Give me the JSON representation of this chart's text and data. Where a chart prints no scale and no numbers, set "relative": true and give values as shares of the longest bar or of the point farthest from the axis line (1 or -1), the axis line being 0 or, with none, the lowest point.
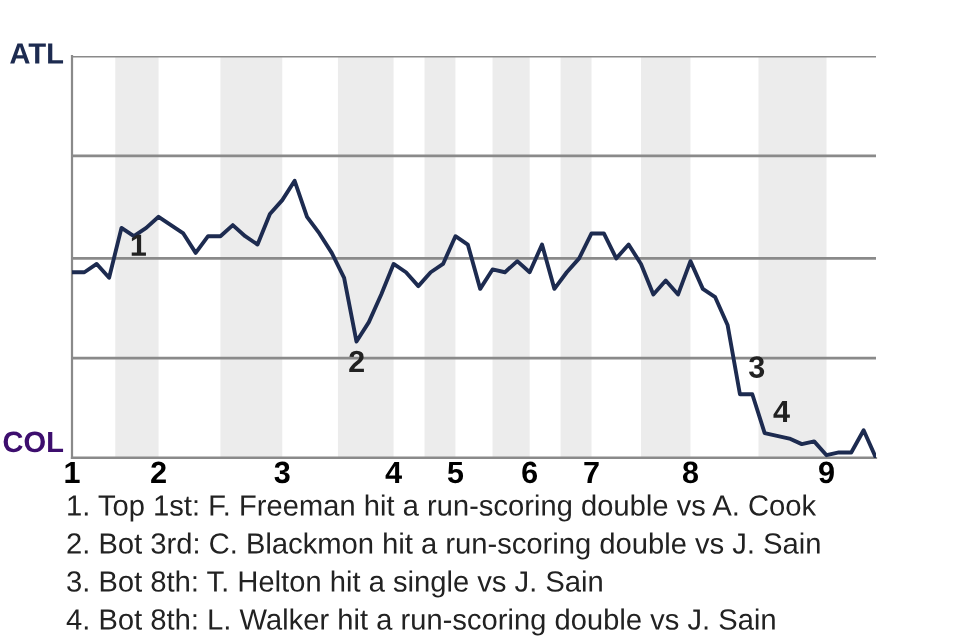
{
  "chart_data": {
    "type": "line",
    "relative": true,
    "categories": [
      "1",
      null,
      null,
      null,
      null,
      null,
      null,
      "2",
      null,
      null,
      null,
      null,
      null,
      null,
      null,
      null,
      null,
      "3",
      null,
      null,
      null,
      null,
      null,
      null,
      null,
      null,
      "4",
      null,
      null,
      null,
      null,
      "5",
      null,
      null,
      null,
      null,
      null,
      "6",
      null,
      null,
      null,
      null,
      "7",
      null,
      null,
      null,
      null,
      null,
      null,
      null,
      "8",
      null,
      null,
      null,
      null,
      null,
      null,
      null,
      null,
      null,
      null,
      "9",
      null,
      null,
      null,
      null
    ],
    "series": [
      {
        "color": "#1d2b50",
        "values": [
          0.67,
          0.67,
          0.7,
          0.65,
          0.83,
          0.8,
          0.83,
          0.87,
          0.84,
          0.81,
          0.74,
          0.8,
          0.8,
          0.84,
          0.8,
          0.77,
          0.88,
          0.93,
          1,
          0.87,
          0.81,
          0.74,
          0.65,
          0.42,
          0.49,
          0.59,
          0.7,
          0.67,
          0.62,
          0.67,
          0.7,
          0.8,
          0.77,
          0.61,
          0.68,
          0.67,
          0.71,
          0.67,
          0.77,
          0.61,
          0.67,
          0.72,
          0.81,
          0.81,
          0.72,
          0.77,
          0.7,
          0.59,
          0.64,
          0.59,
          0.71,
          0.61,
          0.58,
          0.48,
          0.23,
          0.23,
          0.09,
          0.08,
          0.07,
          0.05,
          0.06,
          0.01,
          0.02,
          0.02,
          0.1,
          0
        ]
      }
    ],
    "marker": "none",
    "line_style": "solid",
    "ref_lines": [
      {
        "axis": "y",
        "value": 0,
        "label": "COL"
      },
      {
        "axis": "y",
        "value": 0.36,
        "label": null
      },
      {
        "axis": "y",
        "value": 0.72,
        "label": null
      },
      {
        "axis": "y",
        "value": 1.09,
        "label": null
      },
      {
        "axis": "y",
        "value": 1.45,
        "label": "ATL"
      }
    ],
    "annotations": [
      {
        "text": "1",
        "y": 0.83
      },
      {
        "text": "2",
        "y": 0.42
      },
      {
        "text": "3",
        "y": 0.23
      },
      {
        "text": "4",
        "y": 0.09
      },
      "1. Top 1st: F. Freeman hit a run-scoring double vs A. Cook",
      "2. Bot 3rd: C. Blackmon hit a run-scoring double vs J. Sain",
      "3. Bot 8th: T. Helton hit a single vs J. Sain",
      "4. Bot 8th: L. Walker hit a run-scoring double vs J. Sain"
    ]
  }
}
